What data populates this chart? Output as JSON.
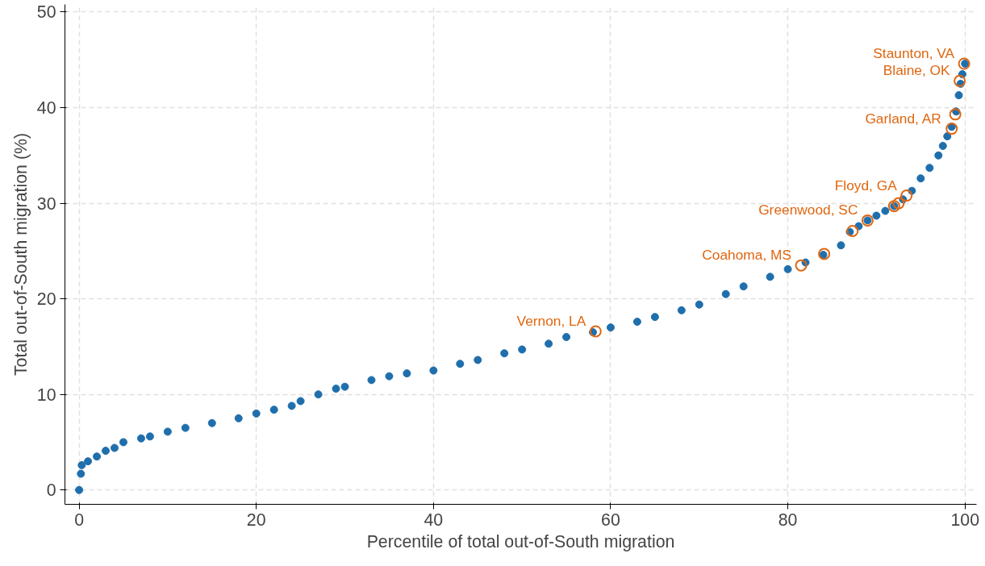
{
  "chart_data": {
    "type": "scatter",
    "xlabel": "Percentile of total out-of-South migration",
    "ylabel": "Total out-of-South migration (%)",
    "xlim": [
      -1.6,
      101.3
    ],
    "ylim": [
      -1.5,
      50.8
    ],
    "xticks": [
      0,
      20,
      40,
      60,
      80,
      100
    ],
    "yticks": [
      0,
      10,
      20,
      30,
      40,
      50
    ],
    "grid": true,
    "marker": "circle",
    "series": [
      {
        "color": "#1f6fad",
        "x": [
          0,
          0.2,
          0.3,
          1,
          2,
          3,
          4,
          5,
          7,
          8,
          10,
          12,
          15,
          18,
          20,
          22,
          24,
          25,
          27,
          29,
          30,
          33,
          35,
          37,
          40,
          43,
          45,
          48,
          50,
          53,
          55,
          58,
          60,
          63,
          65,
          68,
          70,
          73,
          75,
          78,
          80,
          82,
          84,
          86,
          87,
          88,
          89,
          90,
          91,
          92,
          93,
          94,
          95,
          96,
          97,
          97.5,
          98,
          98.5,
          99,
          99.3,
          99.5,
          99.7,
          100
        ],
        "values": [
          0,
          1.7,
          2.6,
          3.0,
          3.5,
          4.1,
          4.4,
          5.0,
          5.4,
          5.6,
          6.1,
          6.5,
          7.0,
          7.5,
          8.0,
          8.4,
          8.8,
          9.3,
          10.0,
          10.6,
          10.8,
          11.5,
          11.9,
          12.2,
          12.5,
          13.2,
          13.6,
          14.3,
          14.7,
          15.3,
          16.0,
          16.5,
          17.0,
          17.6,
          18.1,
          18.8,
          19.4,
          20.5,
          21.3,
          22.3,
          23.1,
          23.8,
          24.6,
          25.6,
          27.0,
          27.6,
          28.2,
          28.7,
          29.2,
          29.7,
          30.4,
          31.3,
          32.6,
          33.7,
          35.0,
          36.0,
          37.0,
          38.0,
          39.6,
          41.3,
          42.5,
          43.5,
          44.6
        ]
      },
      {
        "color": "#e0660f",
        "x": [
          58.3,
          81.5,
          84.1,
          87.3,
          89.0,
          92.0,
          92.5,
          93.4,
          98.5,
          98.9,
          99.4,
          99.9
        ],
        "values": [
          16.6,
          23.5,
          24.7,
          27.1,
          28.2,
          29.7,
          30.0,
          30.8,
          37.8,
          39.3,
          42.8,
          44.6
        ]
      }
    ],
    "annotations": [
      {
        "text": "Vernon, LA",
        "x": 58.3,
        "y": 16.6
      },
      {
        "text": "Coahoma, MS",
        "x": 81.5,
        "y": 23.5
      },
      {
        "text": "Greenwood, SC",
        "x": 89.0,
        "y": 28.2
      },
      {
        "text": "Floyd, GA",
        "x": 93.4,
        "y": 30.8
      },
      {
        "text": "Garland, AR",
        "x": 98.5,
        "y": 37.8
      },
      {
        "text": "Blaine, OK",
        "x": 99.4,
        "y": 42.8
      },
      {
        "text": "Staunton, VA",
        "x": 99.9,
        "y": 44.6
      }
    ]
  }
}
